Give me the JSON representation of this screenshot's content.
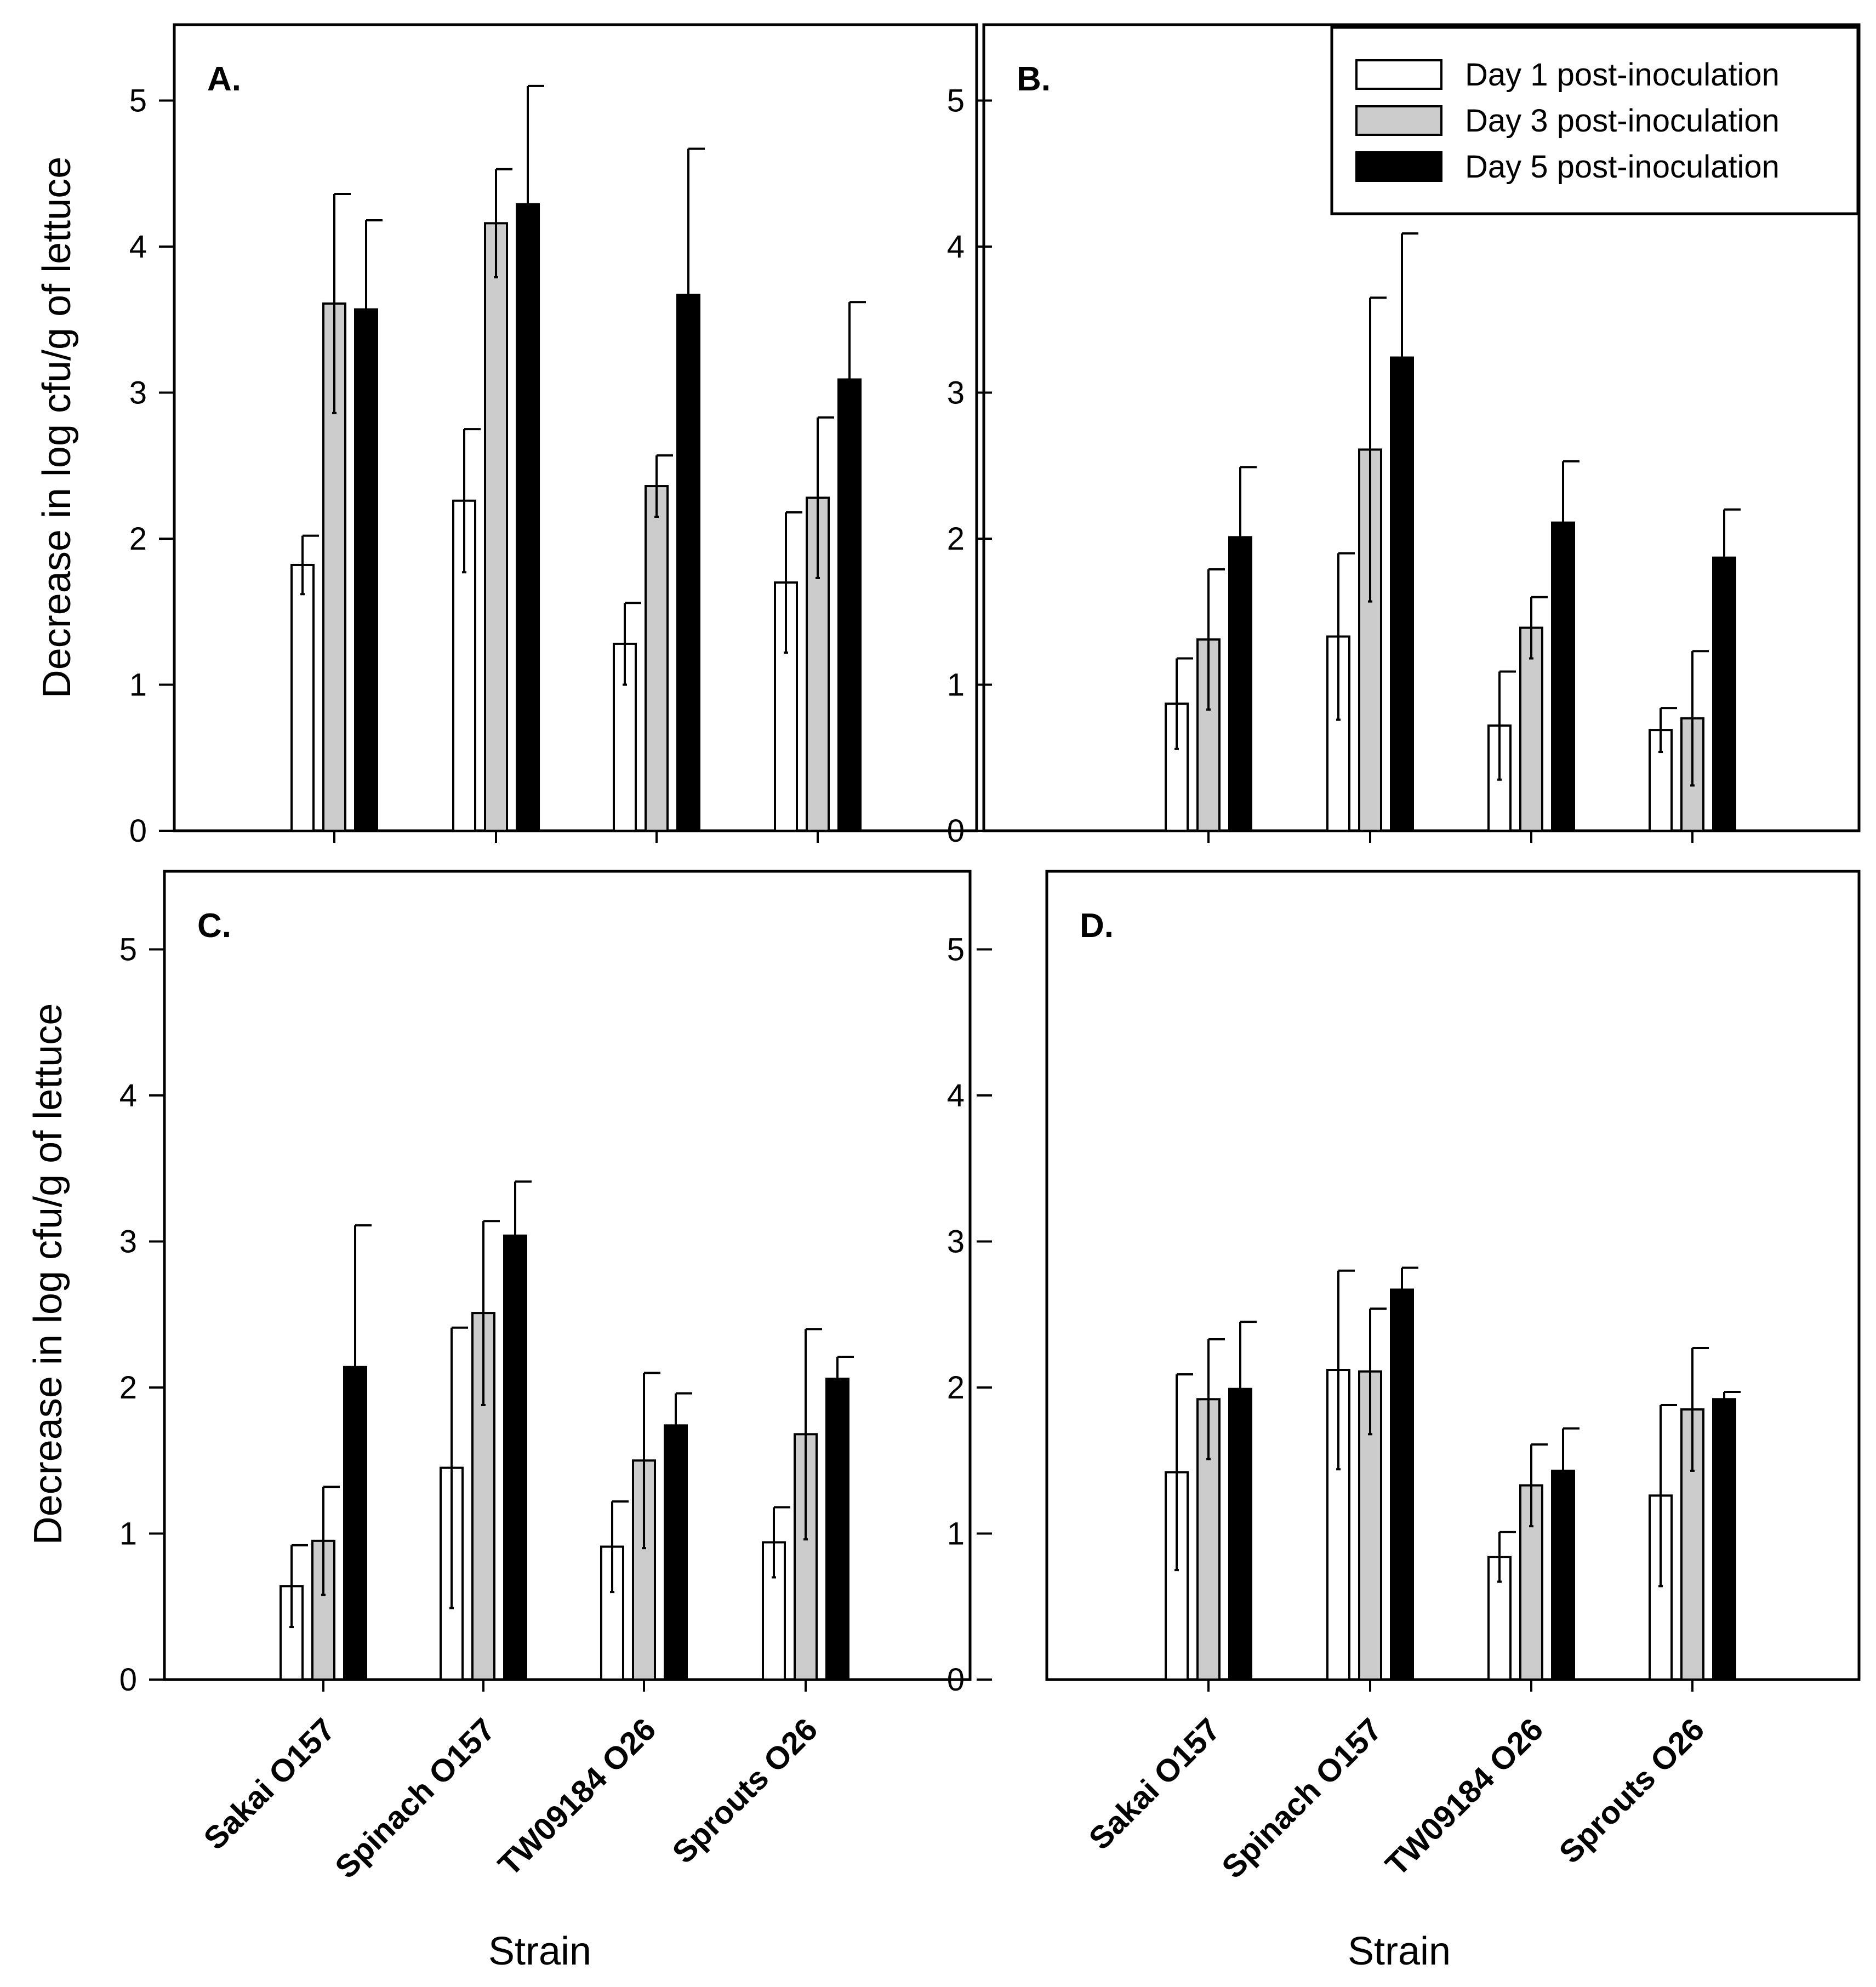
{
  "figure": {
    "y_axis_label": "Decrease in log cfu/g of lettuce",
    "x_axis_label": "Strain",
    "legend": {
      "placement": "top-right of panel B",
      "entries": [
        {
          "label": "Day 1 post-inoculation",
          "color": "#ffffff"
        },
        {
          "label": "Day 3 post-inoculation",
          "color": "#cccccc"
        },
        {
          "label": "Day 5 post-inoculation",
          "color": "#000000"
        }
      ]
    }
  },
  "chart_data": [
    {
      "type": "bar",
      "title": "A.",
      "categories": [
        "Sakai O157",
        "Spinach O157",
        "TW09184 O26",
        "Sprouts O26"
      ],
      "xlabel": "Strain",
      "ylabel": "Decrease in log cfu/g of lettuce",
      "ylim": [
        0,
        5.5
      ],
      "yticks": [
        0,
        1,
        2,
        3,
        4,
        5
      ],
      "series": [
        {
          "name": "Day 1 post-inoculation",
          "values": [
            1.82,
            2.26,
            1.28,
            1.7
          ],
          "errors": [
            0.2,
            0.49,
            0.28,
            0.48
          ]
        },
        {
          "name": "Day 3 post-inoculation",
          "values": [
            3.61,
            4.16,
            2.36,
            2.28
          ],
          "errors": [
            0.75,
            0.37,
            0.21,
            0.55
          ]
        },
        {
          "name": "Day 5 post-inoculation",
          "values": [
            3.57,
            4.29,
            3.67,
            3.09
          ],
          "errors": [
            0.61,
            0.81,
            1.0,
            0.53
          ]
        }
      ]
    },
    {
      "type": "bar",
      "title": "B.",
      "categories": [
        "Sakai O157",
        "Spinach O157",
        "TW09184 O26",
        "Sprouts O26"
      ],
      "xlabel": "Strain",
      "ylabel": "Decrease in log cfu/g of lettuce",
      "ylim": [
        0,
        5.5
      ],
      "yticks": [
        0,
        1,
        2,
        3,
        4,
        5
      ],
      "series": [
        {
          "name": "Day 1 post-inoculation",
          "values": [
            0.87,
            1.33,
            0.72,
            0.69
          ],
          "errors": [
            0.31,
            0.57,
            0.37,
            0.15
          ]
        },
        {
          "name": "Day 3 post-inoculation",
          "values": [
            1.31,
            2.61,
            1.39,
            0.77
          ],
          "errors": [
            0.48,
            1.04,
            0.21,
            0.46
          ]
        },
        {
          "name": "Day 5 post-inoculation",
          "values": [
            2.01,
            3.24,
            2.11,
            1.87
          ],
          "errors": [
            0.48,
            0.85,
            0.42,
            0.33
          ]
        }
      ]
    },
    {
      "type": "bar",
      "title": "C.",
      "categories": [
        "Sakai O157",
        "Spinach O157",
        "TW09184 O26",
        "Sprouts O26"
      ],
      "xlabel": "Strain",
      "ylabel": "Decrease in log cfu/g of lettuce",
      "ylim": [
        0,
        5.5
      ],
      "yticks": [
        0,
        1,
        2,
        3,
        4,
        5
      ],
      "series": [
        {
          "name": "Day 1 post-inoculation",
          "values": [
            0.64,
            1.45,
            0.91,
            0.94
          ],
          "errors": [
            0.28,
            0.96,
            0.31,
            0.24
          ]
        },
        {
          "name": "Day 3 post-inoculation",
          "values": [
            0.95,
            2.51,
            1.5,
            1.68
          ],
          "errors": [
            0.37,
            0.63,
            0.6,
            0.72
          ]
        },
        {
          "name": "Day 5 post-inoculation",
          "values": [
            2.14,
            3.04,
            1.74,
            2.06
          ],
          "errors": [
            0.97,
            0.37,
            0.22,
            0.15
          ]
        }
      ]
    },
    {
      "type": "bar",
      "title": "D.",
      "categories": [
        "Sakai O157",
        "Spinach O157",
        "TW09184 O26",
        "Sprouts O26"
      ],
      "xlabel": "Strain",
      "ylabel": "",
      "ylim": [
        0,
        5.5
      ],
      "yticks": [
        0,
        1,
        2,
        3,
        4,
        5
      ],
      "series": [
        {
          "name": "Day 1 post-inoculation",
          "values": [
            1.42,
            2.12,
            0.84,
            1.26
          ],
          "errors": [
            0.67,
            0.68,
            0.17,
            0.62
          ]
        },
        {
          "name": "Day 3 post-inoculation",
          "values": [
            1.92,
            2.11,
            1.33,
            1.85
          ],
          "errors": [
            0.41,
            0.43,
            0.28,
            0.42
          ]
        },
        {
          "name": "Day 5 post-inoculation",
          "values": [
            1.99,
            2.67,
            1.43,
            1.92
          ],
          "errors": [
            0.46,
            0.15,
            0.29,
            0.05
          ]
        }
      ]
    }
  ]
}
